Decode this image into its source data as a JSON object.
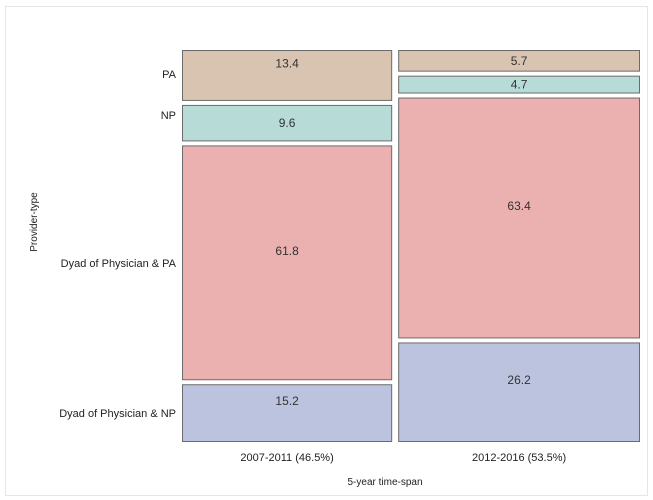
{
  "chart_data": {
    "type": "mosaic",
    "xlabel": "5-year time-span",
    "ylabel": "Provider-type",
    "columns": [
      {
        "label": "2007-2011 (46.5%)",
        "share": 46.5,
        "segments": [
          {
            "category": "Dyad of Physician & NP",
            "value": 15.2
          },
          {
            "category": "Dyad of Physician & PA",
            "value": 61.8
          },
          {
            "category": "NP",
            "value": 9.6
          },
          {
            "category": "PA",
            "value": 13.4
          }
        ]
      },
      {
        "label": "2012-2016 (53.5%)",
        "share": 53.5,
        "segments": [
          {
            "category": "Dyad of Physician & NP",
            "value": 26.2
          },
          {
            "category": "Dyad of Physician & PA",
            "value": 63.4
          },
          {
            "category": "NP",
            "value": 4.7
          },
          {
            "category": "PA",
            "value": 5.7
          }
        ]
      }
    ],
    "y_categories": [
      "Dyad of Physician & NP",
      "Dyad of Physician & PA",
      "NP",
      "PA"
    ],
    "colors": {
      "Dyad of Physician & NP": "#bcc3de",
      "Dyad of Physician & PA": "#ebb1b0",
      "NP": "#b7dcd7",
      "PA": "#d8c4b1"
    },
    "cell_border_color": "#6b6b6b"
  }
}
